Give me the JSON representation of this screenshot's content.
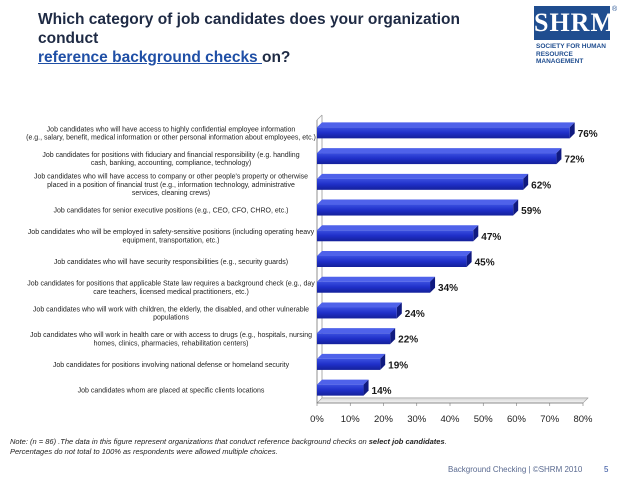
{
  "title": {
    "line1": "Which category of job candidates does your organization conduct",
    "link": "reference background checks ",
    "end": "on?"
  },
  "logo": {
    "text": "SHRM",
    "registered": "®",
    "subtitle": "SOCIETY FOR HUMAN RESOURCE MANAGEMENT"
  },
  "chart_data": {
    "type": "bar",
    "orientation": "horizontal",
    "title": "Which category of job candidates does your organization conduct reference background checks on?",
    "categories": [
      [
        "Job candidates who will have access to highly confidential employee information",
        "(e.g., salary, benefit, medical information or other personal information about employees, etc.)"
      ],
      [
        "Job candidates for positions with fiduciary and financial responsibility (e.g. handling",
        "cash, banking,  accounting, compliance, technology)"
      ],
      [
        "Job candidates who will have access to company or other people's property or otherwise",
        "placed in a position of financial trust (e.g., information technology, administrative",
        "services, cleaning crews)"
      ],
      [
        "Job candidates for senior executive positions (e.g., CEO, CFO, CHRO, etc.)"
      ],
      [
        "Job candidates who will be employed in safety-sensitive positions (including operating heavy",
        "equipment, transportation, etc.)"
      ],
      [
        "Job candidates who will have security responsibilities (e.g., security guards)"
      ],
      [
        "Job candidates for positions that applicable State law requires a background check (e.g., day",
        "care teachers, licensed medical practitioners, etc.)"
      ],
      [
        "Job candidates who will work with children, the elderly, the disabled, and other vulnerable",
        "populations"
      ],
      [
        "Job candidates who will work in health care or with access to drugs (e.g., hospitals, nursing",
        "homes, clinics, pharmacies, rehabilitation centers)"
      ],
      [
        "Job candidates for positions involving national defense or homeland security"
      ],
      [
        "Job candidates whom are placed at specific clients locations"
      ]
    ],
    "values": [
      76,
      72,
      62,
      59,
      47,
      45,
      34,
      24,
      22,
      19,
      14
    ],
    "value_labels": [
      "76%",
      "72%",
      "62%",
      "59%",
      "47%",
      "45%",
      "34%",
      "24%",
      "22%",
      "19%",
      "14%"
    ],
    "xlim": [
      0,
      80
    ],
    "xticks": [
      "0%",
      "10%",
      "20%",
      "30%",
      "40%",
      "50%",
      "60%",
      "70%",
      "80%"
    ],
    "bar_color": "#2233cc",
    "grid": false
  },
  "note": {
    "prefix": "Note: (n = 86) .The data in this figure represent organizations that conduct reference background checks on ",
    "emphasis": "select job candidates",
    "suffix": ". Percentages  do not total to 100% as respondents were allowed multiple choices."
  },
  "footer": {
    "text": "Background Checking | ©SHRM 2010",
    "page": "5"
  }
}
